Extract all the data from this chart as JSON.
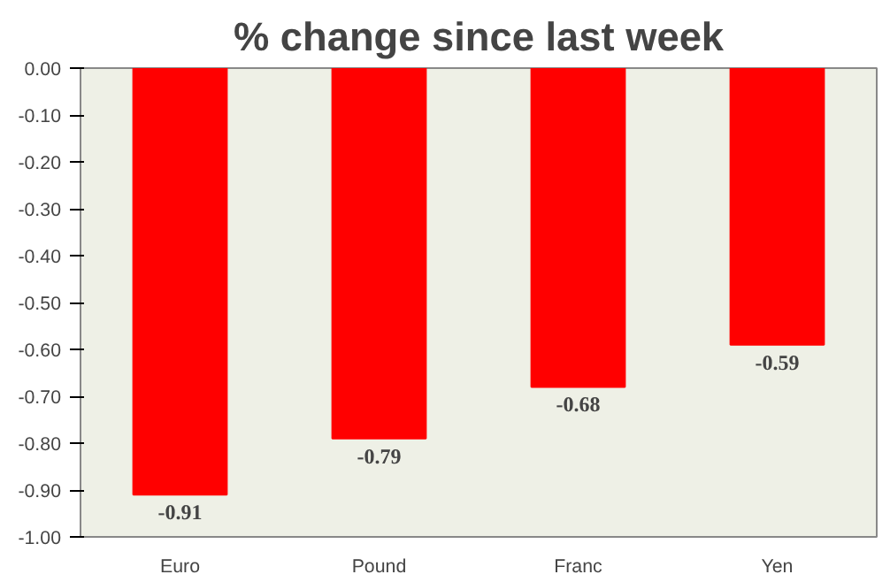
{
  "chart_data": {
    "type": "bar",
    "title": "% change since last week",
    "categories": [
      "Euro",
      "Pound",
      "Franc",
      "Yen"
    ],
    "values": [
      -0.91,
      -0.79,
      -0.68,
      -0.59
    ],
    "color": "#ff0000",
    "ylim": [
      -1.0,
      0.0
    ],
    "yticks": [
      {
        "value": 0.0,
        "label": "0.00"
      },
      {
        "value": -0.1,
        "label": "-0.10"
      },
      {
        "value": -0.2,
        "label": "-0.20"
      },
      {
        "value": -0.3,
        "label": "-0.30"
      },
      {
        "value": -0.4,
        "label": "-0.40"
      },
      {
        "value": -0.5,
        "label": "-0.50"
      },
      {
        "value": -0.6,
        "label": "-0.60"
      },
      {
        "value": -0.7,
        "label": "-0.70"
      },
      {
        "value": -0.8,
        "label": "-0.80"
      },
      {
        "value": -0.9,
        "label": "-0.90"
      },
      {
        "value": -1.0,
        "label": "-1.00"
      }
    ],
    "data_labels": true,
    "grid": false
  }
}
